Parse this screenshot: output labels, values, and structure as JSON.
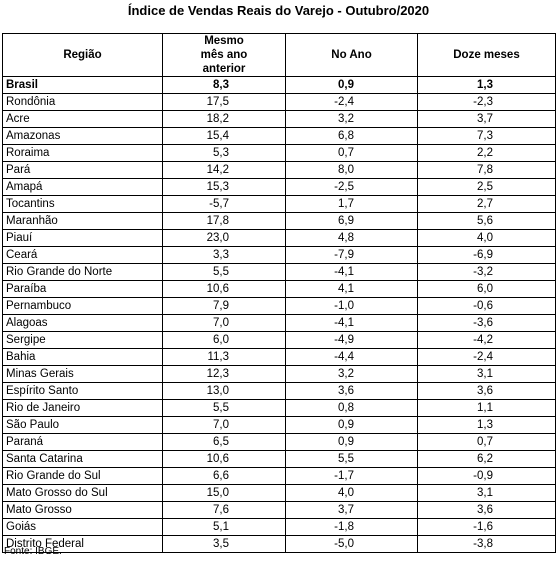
{
  "title": "Índice de Vendas Reais do Varejo - Outubro/2020",
  "table": {
    "header": [
      "Região",
      "Mesmo mês ano anterior",
      "No Ano",
      "Doze meses"
    ],
    "rows": [
      [
        "Brasil",
        "8,3",
        "0,9",
        "1,3"
      ],
      [
        "Rondônia",
        "17,5",
        "-2,4",
        "-2,3"
      ],
      [
        "Acre",
        "18,2",
        "3,2",
        "3,7"
      ],
      [
        "Amazonas",
        "15,4",
        "6,8",
        "7,3"
      ],
      [
        "Roraima",
        "5,3",
        "0,7",
        "2,2"
      ],
      [
        "Pará",
        "14,2",
        "8,0",
        "7,8"
      ],
      [
        "Amapá",
        "15,3",
        "-2,5",
        "2,5"
      ],
      [
        "Tocantins",
        "-5,7",
        "1,7",
        "2,7"
      ],
      [
        "Maranhão",
        "17,8",
        "6,9",
        "5,6"
      ],
      [
        "Piauí",
        "23,0",
        "4,8",
        "4,0"
      ],
      [
        "Ceará",
        "3,3",
        "-7,9",
        "-6,9"
      ],
      [
        "Rio Grande do Norte",
        "5,5",
        "-4,1",
        "-3,2"
      ],
      [
        "Paraíba",
        "10,6",
        "4,1",
        "6,0"
      ],
      [
        "Pernambuco",
        "7,9",
        "-1,0",
        "-0,6"
      ],
      [
        "Alagoas",
        "7,0",
        "-4,1",
        "-3,6"
      ],
      [
        "Sergipe",
        "6,0",
        "-4,9",
        "-4,2"
      ],
      [
        "Bahia",
        "11,3",
        "-4,4",
        "-2,4"
      ],
      [
        "Minas Gerais",
        "12,3",
        "3,2",
        "3,1"
      ],
      [
        "Espírito Santo",
        "13,0",
        "3,6",
        "3,6"
      ],
      [
        "Rio de Janeiro",
        "5,5",
        "0,8",
        "1,1"
      ],
      [
        "São Paulo",
        "7,0",
        "0,9",
        "1,3"
      ],
      [
        "Paraná",
        "6,5",
        "0,9",
        "0,7"
      ],
      [
        "Santa Catarina",
        "10,6",
        "5,5",
        "6,2"
      ],
      [
        "Rio Grande do Sul",
        "6,6",
        "-1,7",
        "-0,9"
      ],
      [
        "Mato Grosso do Sul",
        "15,0",
        "4,0",
        "3,1"
      ],
      [
        "Mato Grosso",
        "7,6",
        "3,7",
        "3,6"
      ],
      [
        "Goiás",
        "5,1",
        "-1,8",
        "-1,6"
      ],
      [
        "Distrito Federal",
        "3,5",
        "-5,0",
        "-3,8"
      ]
    ]
  },
  "source": "Fonte: IBGE."
}
